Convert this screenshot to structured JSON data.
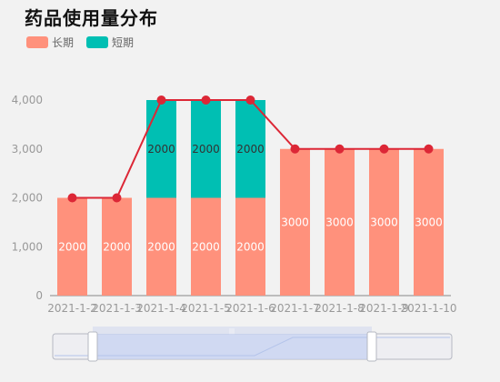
{
  "title": "药品使用量分布",
  "legend": [
    {
      "name": "长期",
      "color": "#FF917C"
    },
    {
      "name": "短期",
      "color": "#00BFB3"
    }
  ],
  "colors": {
    "line": "#DC2736",
    "axis": "#999999",
    "grid": "#dddddd",
    "label_dark": "#333333",
    "label_light": "#ffffff"
  },
  "chart_data": {
    "type": "bar",
    "stacked": true,
    "title": "药品使用量分布",
    "categories": [
      "2021-1-2",
      "2021-1-3",
      "2021-1-4",
      "2021-1-5",
      "2021-1-6",
      "2021-1-7",
      "2021-1-8",
      "2021-1-9",
      "2021-1-10"
    ],
    "series": [
      {
        "name": "长期",
        "type": "bar",
        "values": [
          2000,
          2000,
          2000,
          2000,
          2000,
          3000,
          3000,
          3000,
          3000
        ]
      },
      {
        "name": "短期",
        "type": "bar",
        "values": [
          0,
          0,
          2000,
          2000,
          2000,
          0,
          0,
          0,
          0
        ]
      },
      {
        "type": "line",
        "values": [
          2000,
          2000,
          4000,
          4000,
          4000,
          3000,
          3000,
          3000,
          3000
        ]
      }
    ],
    "yticks": [
      "0",
      "1,000",
      "2,000",
      "3,000",
      "4,000"
    ],
    "ylim": [
      0,
      4000
    ],
    "grid": false,
    "legend_position": "top-left",
    "datazoom": true
  }
}
